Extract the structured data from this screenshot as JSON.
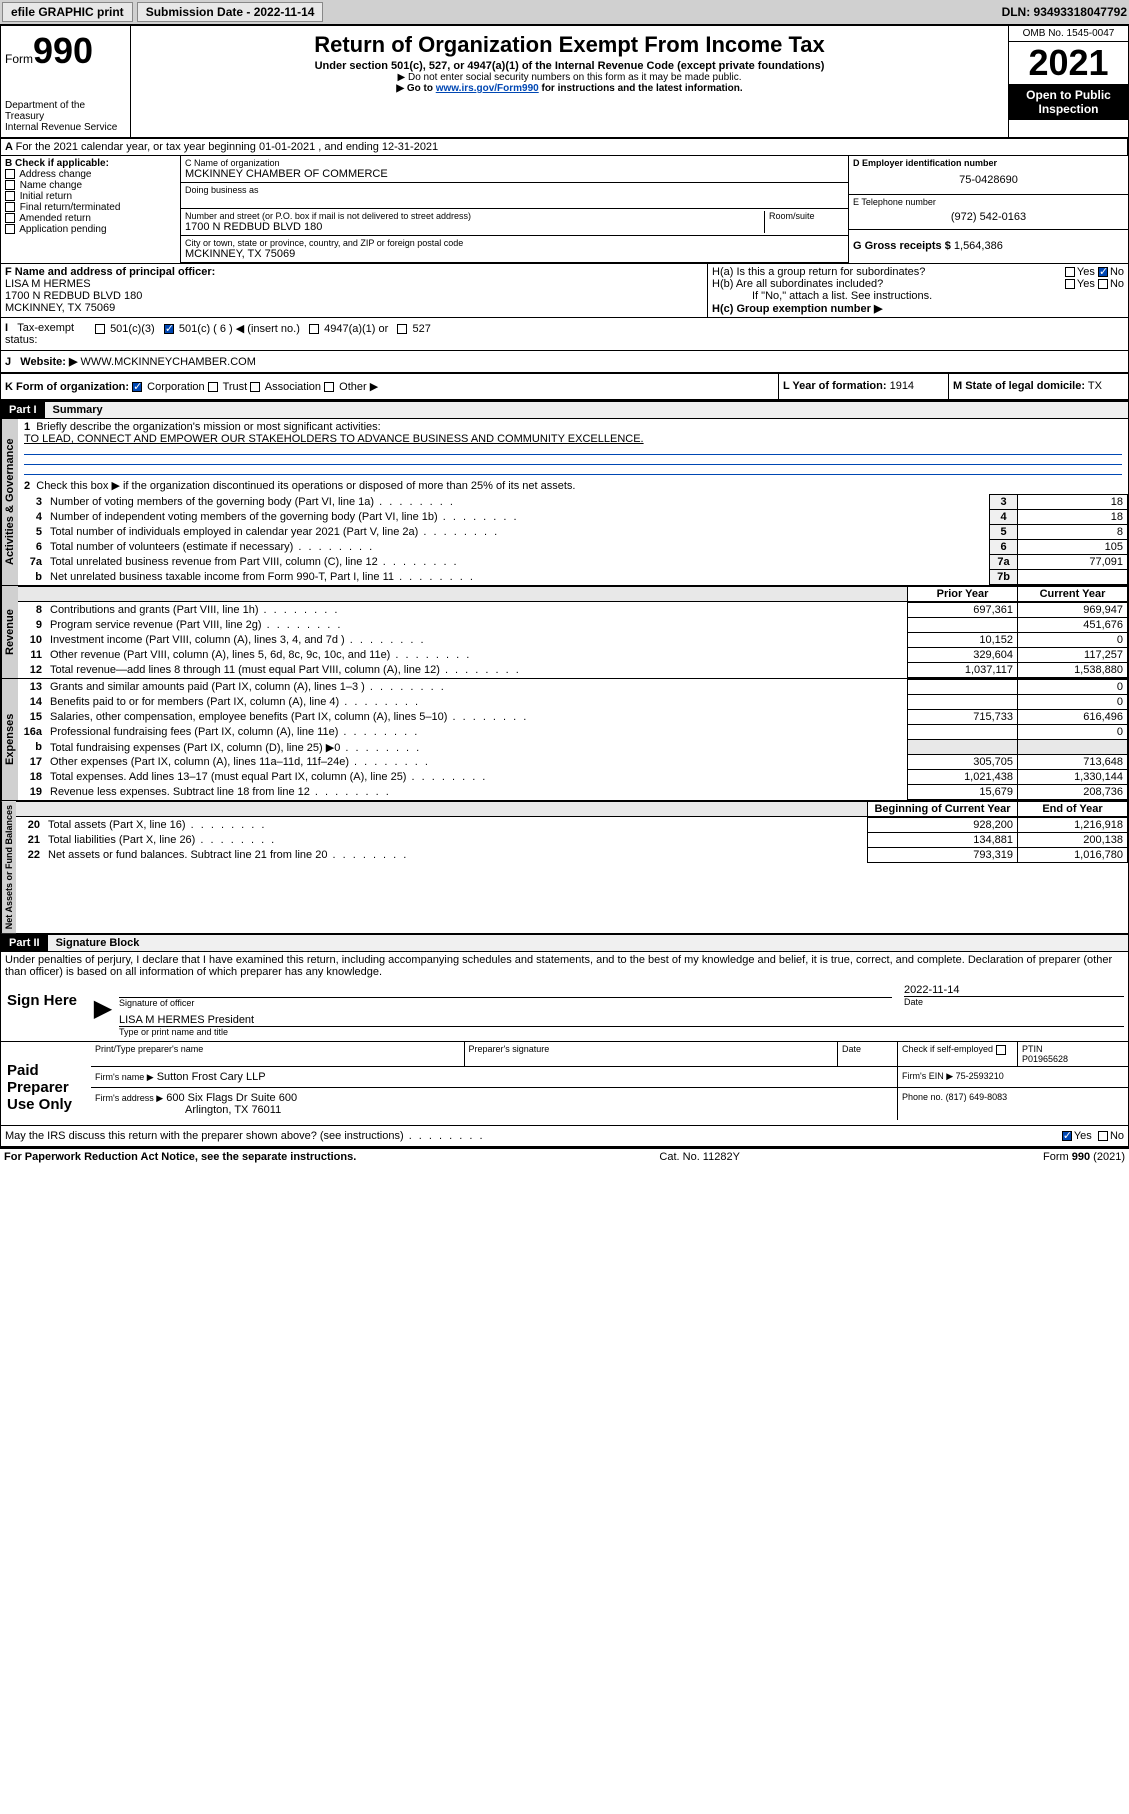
{
  "topbar": {
    "efile": "efile GRAPHIC print",
    "submission_lbl": "Submission Date - 2022-11-14",
    "dln": "DLN: 93493318047792"
  },
  "header": {
    "form_word": "Form",
    "form_num": "990",
    "dept": "Department of the Treasury",
    "irs": "Internal Revenue Service",
    "title": "Return of Organization Exempt From Income Tax",
    "sub": "Under section 501(c), 527, or 4947(a)(1) of the Internal Revenue Code (except private foundations)",
    "note1": "▶ Do not enter social security numbers on this form as it may be made public.",
    "note2_pre": "▶ Go to ",
    "note2_link": "www.irs.gov/Form990",
    "note2_post": " for instructions and the latest information.",
    "omb": "OMB No. 1545-0047",
    "year": "2021",
    "open": "Open to Public Inspection"
  },
  "line_a": "For the 2021 calendar year, or tax year beginning 01-01-2021   , and ending 12-31-2021",
  "b": {
    "hdr": "B Check if applicable:",
    "items": [
      "Address change",
      "Name change",
      "Initial return",
      "Final return/terminated",
      "Amended return",
      "Application pending"
    ]
  },
  "c": {
    "name_lbl": "C Name of organization",
    "name": "MCKINNEY CHAMBER OF COMMERCE",
    "dba_lbl": "Doing business as",
    "addr_lbl": "Number and street (or P.O. box if mail is not delivered to street address)",
    "room_lbl": "Room/suite",
    "addr": "1700 N REDBUD BLVD 180",
    "city_lbl": "City or town, state or province, country, and ZIP or foreign postal code",
    "city": "MCKINNEY, TX  75069"
  },
  "d": {
    "lbl": "D Employer identification number",
    "val": "75-0428690"
  },
  "e": {
    "lbl": "E Telephone number",
    "val": "(972) 542-0163"
  },
  "g": {
    "lbl": "G Gross receipts $",
    "val": "1,564,386"
  },
  "f": {
    "lbl": "F  Name and address of principal officer:",
    "name": "LISA M HERMES",
    "addr1": "1700 N REDBUD BLVD 180",
    "addr2": "MCKINNEY, TX  75069"
  },
  "h": {
    "a": "H(a)  Is this a group return for subordinates?",
    "b": "H(b)  Are all subordinates included?",
    "b_note": "If \"No,\" attach a list. See instructions.",
    "c": "H(c)  Group exemption number ▶",
    "yes": "Yes",
    "no": "No"
  },
  "i": {
    "lbl": "Tax-exempt status:",
    "o1": "501(c)(3)",
    "o2": "501(c) ( 6 ) ◀ (insert no.)",
    "o3": "4947(a)(1) or",
    "o4": "527"
  },
  "j": {
    "lbl": "Website: ▶",
    "val": "WWW.MCKINNEYCHAMBER.COM"
  },
  "k": {
    "lbl": "K Form of organization:",
    "o1": "Corporation",
    "o2": "Trust",
    "o3": "Association",
    "o4": "Other ▶"
  },
  "l": {
    "lbl": "L Year of formation:",
    "val": "1914"
  },
  "m": {
    "lbl": "M State of legal domicile:",
    "val": "TX"
  },
  "part1": {
    "hdr": "Part I",
    "title": "Summary",
    "q1": "Briefly describe the organization's mission or most significant activities:",
    "mission": "TO LEAD, CONNECT AND EMPOWER OUR STAKEHOLDERS TO ADVANCE BUSINESS AND COMMUNITY EXCELLENCE.",
    "q2": "Check this box ▶        if the organization discontinued its operations or disposed of more than 25% of its net assets.",
    "tabs": {
      "ag": "Activities & Governance",
      "rev": "Revenue",
      "exp": "Expenses",
      "na": "Net Assets or Fund Balances"
    },
    "rows_ag": [
      {
        "n": "3",
        "t": "Number of voting members of the governing body (Part VI, line 1a)",
        "ln": "3",
        "v": "18"
      },
      {
        "n": "4",
        "t": "Number of independent voting members of the governing body (Part VI, line 1b)",
        "ln": "4",
        "v": "18"
      },
      {
        "n": "5",
        "t": "Total number of individuals employed in calendar year 2021 (Part V, line 2a)",
        "ln": "5",
        "v": "8"
      },
      {
        "n": "6",
        "t": "Total number of volunteers (estimate if necessary)",
        "ln": "6",
        "v": "105"
      },
      {
        "n": "7a",
        "t": "Total unrelated business revenue from Part VIII, column (C), line 12",
        "ln": "7a",
        "v": "77,091"
      },
      {
        "n": "b",
        "t": "Net unrelated business taxable income from Form 990-T, Part I, line 11",
        "ln": "7b",
        "v": ""
      }
    ],
    "col_prior": "Prior Year",
    "col_curr": "Current Year",
    "rows_rev": [
      {
        "n": "8",
        "t": "Contributions and grants (Part VIII, line 1h)",
        "p": "697,361",
        "c": "969,947"
      },
      {
        "n": "9",
        "t": "Program service revenue (Part VIII, line 2g)",
        "p": "",
        "c": "451,676"
      },
      {
        "n": "10",
        "t": "Investment income (Part VIII, column (A), lines 3, 4, and 7d )",
        "p": "10,152",
        "c": "0"
      },
      {
        "n": "11",
        "t": "Other revenue (Part VIII, column (A), lines 5, 6d, 8c, 9c, 10c, and 11e)",
        "p": "329,604",
        "c": "117,257"
      },
      {
        "n": "12",
        "t": "Total revenue—add lines 8 through 11 (must equal Part VIII, column (A), line 12)",
        "p": "1,037,117",
        "c": "1,538,880"
      }
    ],
    "rows_exp": [
      {
        "n": "13",
        "t": "Grants and similar amounts paid (Part IX, column (A), lines 1–3 )",
        "p": "",
        "c": "0"
      },
      {
        "n": "14",
        "t": "Benefits paid to or for members (Part IX, column (A), line 4)",
        "p": "",
        "c": "0"
      },
      {
        "n": "15",
        "t": "Salaries, other compensation, employee benefits (Part IX, column (A), lines 5–10)",
        "p": "715,733",
        "c": "616,496"
      },
      {
        "n": "16a",
        "t": "Professional fundraising fees (Part IX, column (A), line 11e)",
        "p": "",
        "c": "0"
      },
      {
        "n": "b",
        "t": "Total fundraising expenses (Part IX, column (D), line 25) ▶0",
        "p": "GRAY",
        "c": "GRAY"
      },
      {
        "n": "17",
        "t": "Other expenses (Part IX, column (A), lines 11a–11d, 11f–24e)",
        "p": "305,705",
        "c": "713,648"
      },
      {
        "n": "18",
        "t": "Total expenses. Add lines 13–17 (must equal Part IX, column (A), line 25)",
        "p": "1,021,438",
        "c": "1,330,144"
      },
      {
        "n": "19",
        "t": "Revenue less expenses. Subtract line 18 from line 12",
        "p": "15,679",
        "c": "208,736"
      }
    ],
    "col_beg": "Beginning of Current Year",
    "col_end": "End of Year",
    "rows_na": [
      {
        "n": "20",
        "t": "Total assets (Part X, line 16)",
        "p": "928,200",
        "c": "1,216,918"
      },
      {
        "n": "21",
        "t": "Total liabilities (Part X, line 26)",
        "p": "134,881",
        "c": "200,138"
      },
      {
        "n": "22",
        "t": "Net assets or fund balances. Subtract line 21 from line 20",
        "p": "793,319",
        "c": "1,016,780"
      }
    ]
  },
  "part2": {
    "hdr": "Part II",
    "title": "Signature Block",
    "decl": "Under penalties of perjury, I declare that I have examined this return, including accompanying schedules and statements, and to the best of my knowledge and belief, it is true, correct, and complete. Declaration of preparer (other than officer) is based on all information of which preparer has any knowledge.",
    "sign_here": "Sign Here",
    "sig_officer": "Signature of officer",
    "date_lbl": "Date",
    "date": "2022-11-14",
    "officer": "LISA M HERMES President",
    "type_lbl": "Type or print name and title",
    "paid": "Paid Preparer Use Only",
    "pt_name_lbl": "Print/Type preparer's name",
    "prep_sig_lbl": "Preparer's signature",
    "check_if": "Check         if self-employed",
    "ptin_lbl": "PTIN",
    "ptin": "P01965628",
    "firm_name_lbl": "Firm's name   ▶",
    "firm_name": "Sutton Frost Cary LLP",
    "firm_ein_lbl": "Firm's EIN ▶",
    "firm_ein": "75-2593210",
    "firm_addr_lbl": "Firm's address ▶",
    "firm_addr": "600 Six Flags Dr Suite 600",
    "firm_city": "Arlington, TX  76011",
    "phone_lbl": "Phone no.",
    "phone": "(817) 649-8083",
    "discuss": "May the IRS discuss this return with the preparer shown above? (see instructions)"
  },
  "footer": {
    "pra": "For Paperwork Reduction Act Notice, see the separate instructions.",
    "cat": "Cat. No. 11282Y",
    "form": "Form 990 (2021)"
  }
}
